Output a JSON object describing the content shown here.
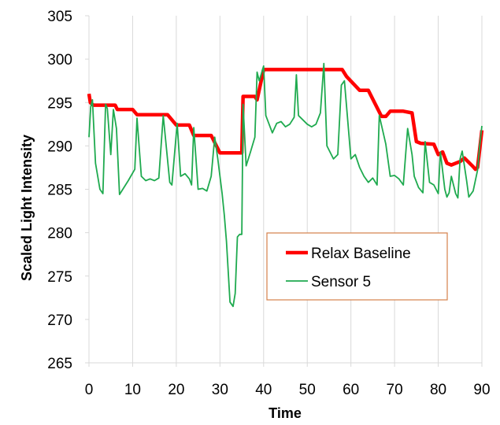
{
  "chart_data": {
    "type": "line",
    "xlabel": "Time",
    "ylabel": "Scaled Light Intensity",
    "xlim": [
      0,
      90
    ],
    "ylim": [
      265,
      305
    ],
    "xticks": [
      "0",
      "10",
      "20",
      "30",
      "40",
      "50",
      "60",
      "70",
      "80",
      "90"
    ],
    "yticks": [
      "265",
      "270",
      "275",
      "280",
      "285",
      "290",
      "295",
      "300",
      "305"
    ],
    "grid": "vertical",
    "legend_position": "center-right",
    "series": [
      {
        "name": "Relax Baseline",
        "color": "#ff0000",
        "x": [
          0,
          0.3,
          1,
          6,
          6.5,
          10,
          11,
          16,
          18,
          20,
          23,
          24,
          28,
          30,
          31,
          35,
          35.3,
          38,
          38.5,
          40,
          41,
          45,
          47,
          47.5,
          53,
          55,
          58,
          59,
          62,
          64,
          67,
          68,
          69,
          72,
          74,
          75,
          76,
          79,
          80,
          81,
          82,
          83,
          85,
          86,
          88,
          88.5,
          89,
          90
        ],
        "values": [
          296,
          295,
          294.7,
          294.7,
          294.2,
          294.2,
          293.6,
          293.6,
          293.6,
          292.4,
          292.4,
          291.2,
          291.2,
          289.2,
          289.2,
          289.2,
          295.7,
          295.7,
          295.3,
          298.8,
          298.8,
          298.8,
          298.8,
          298.8,
          298.8,
          298.8,
          298.8,
          298,
          296.4,
          296.4,
          293.4,
          293.4,
          294,
          294,
          293.8,
          290.5,
          290.3,
          290.2,
          289,
          289.3,
          288,
          287.8,
          288.2,
          288.6,
          287.6,
          287.3,
          287.5,
          291.8
        ]
      },
      {
        "name": "Sensor 5",
        "color": "#1faa4f",
        "x": [
          0,
          0.4,
          0.8,
          1.5,
          2.5,
          3.2,
          3.8,
          4.2,
          5,
          5.6,
          6.3,
          7,
          9,
          10.5,
          11,
          12,
          13,
          14,
          15,
          16,
          17,
          17.5,
          18.5,
          19,
          20.2,
          21,
          22,
          23,
          23.5,
          24,
          25,
          26,
          27,
          28,
          28.8,
          29.5,
          30.5,
          31,
          31.5,
          32.3,
          33,
          33.5,
          34,
          34.5,
          35,
          35.3,
          36,
          37,
          38,
          38.5,
          39,
          40,
          40.5,
          42,
          43,
          44,
          45,
          46,
          47,
          47.5,
          48,
          50,
          51,
          52,
          53,
          53.8,
          54.5,
          56,
          57,
          57.8,
          58.5,
          60,
          61,
          62,
          63,
          64,
          65,
          66,
          66.5,
          68,
          69,
          70,
          71,
          72,
          73,
          74,
          74.5,
          75.5,
          76.5,
          77,
          78,
          79,
          80,
          80.5,
          81.5,
          82,
          82.5,
          83,
          84,
          84.5,
          85,
          85.5,
          86.5,
          87,
          88,
          89,
          89.5,
          90
        ],
        "values": [
          291,
          294.5,
          295.3,
          288,
          285,
          284.5,
          294.8,
          294.3,
          289,
          294.2,
          292,
          284.4,
          286,
          287.3,
          293.2,
          286.5,
          286,
          286.2,
          286,
          286.3,
          293.5,
          291,
          285.8,
          285.5,
          292.6,
          286.5,
          286.8,
          286.2,
          285.5,
          292.1,
          285,
          285.1,
          284.8,
          286.5,
          291,
          288.5,
          284.5,
          282,
          279,
          272,
          271.5,
          273,
          279.5,
          279.8,
          279.8,
          294.8,
          287.7,
          289.3,
          291,
          298.5,
          297.5,
          299.2,
          293.5,
          291.5,
          292.6,
          292.8,
          292.2,
          292.5,
          293.3,
          298.2,
          293.5,
          292.5,
          292.2,
          292.5,
          293.8,
          299.5,
          290,
          288.5,
          289,
          297,
          297.5,
          288.5,
          289,
          287.5,
          286.5,
          285.8,
          286.3,
          285.5,
          293.5,
          290.2,
          286.5,
          286.6,
          286.2,
          285.5,
          292,
          289,
          286.5,
          285.2,
          284.6,
          290.5,
          285.8,
          285.5,
          284.5,
          289.3,
          285,
          284.1,
          284.6,
          286.5,
          284.5,
          284,
          288.5,
          289.4,
          286,
          284.1,
          284.8,
          287.2,
          290,
          292.3
        ]
      }
    ]
  }
}
